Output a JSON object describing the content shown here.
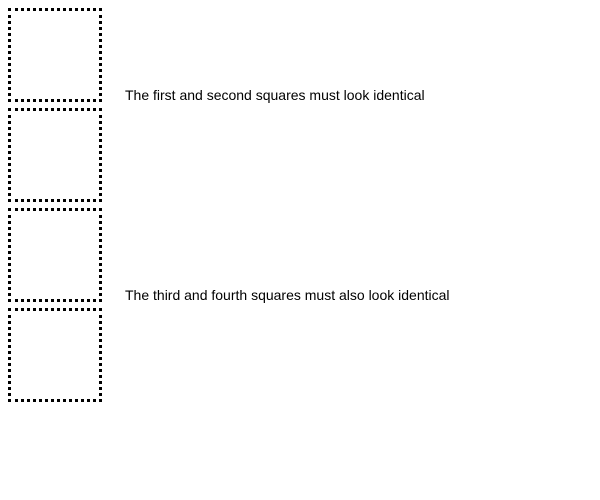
{
  "captions": {
    "first_pair": "The first and second squares must look identical",
    "second_pair": "The third and fourth squares must also look identical"
  },
  "colors": {
    "background": "#ffffff",
    "border": "#000000",
    "text": "#000000"
  },
  "squares": [
    {
      "label": "first square",
      "border_style": "dotted"
    },
    {
      "label": "second square",
      "border_style": "dotted"
    },
    {
      "label": "third square",
      "border_style": "dotted"
    },
    {
      "label": "fourth square",
      "border_style": "dotted"
    }
  ]
}
